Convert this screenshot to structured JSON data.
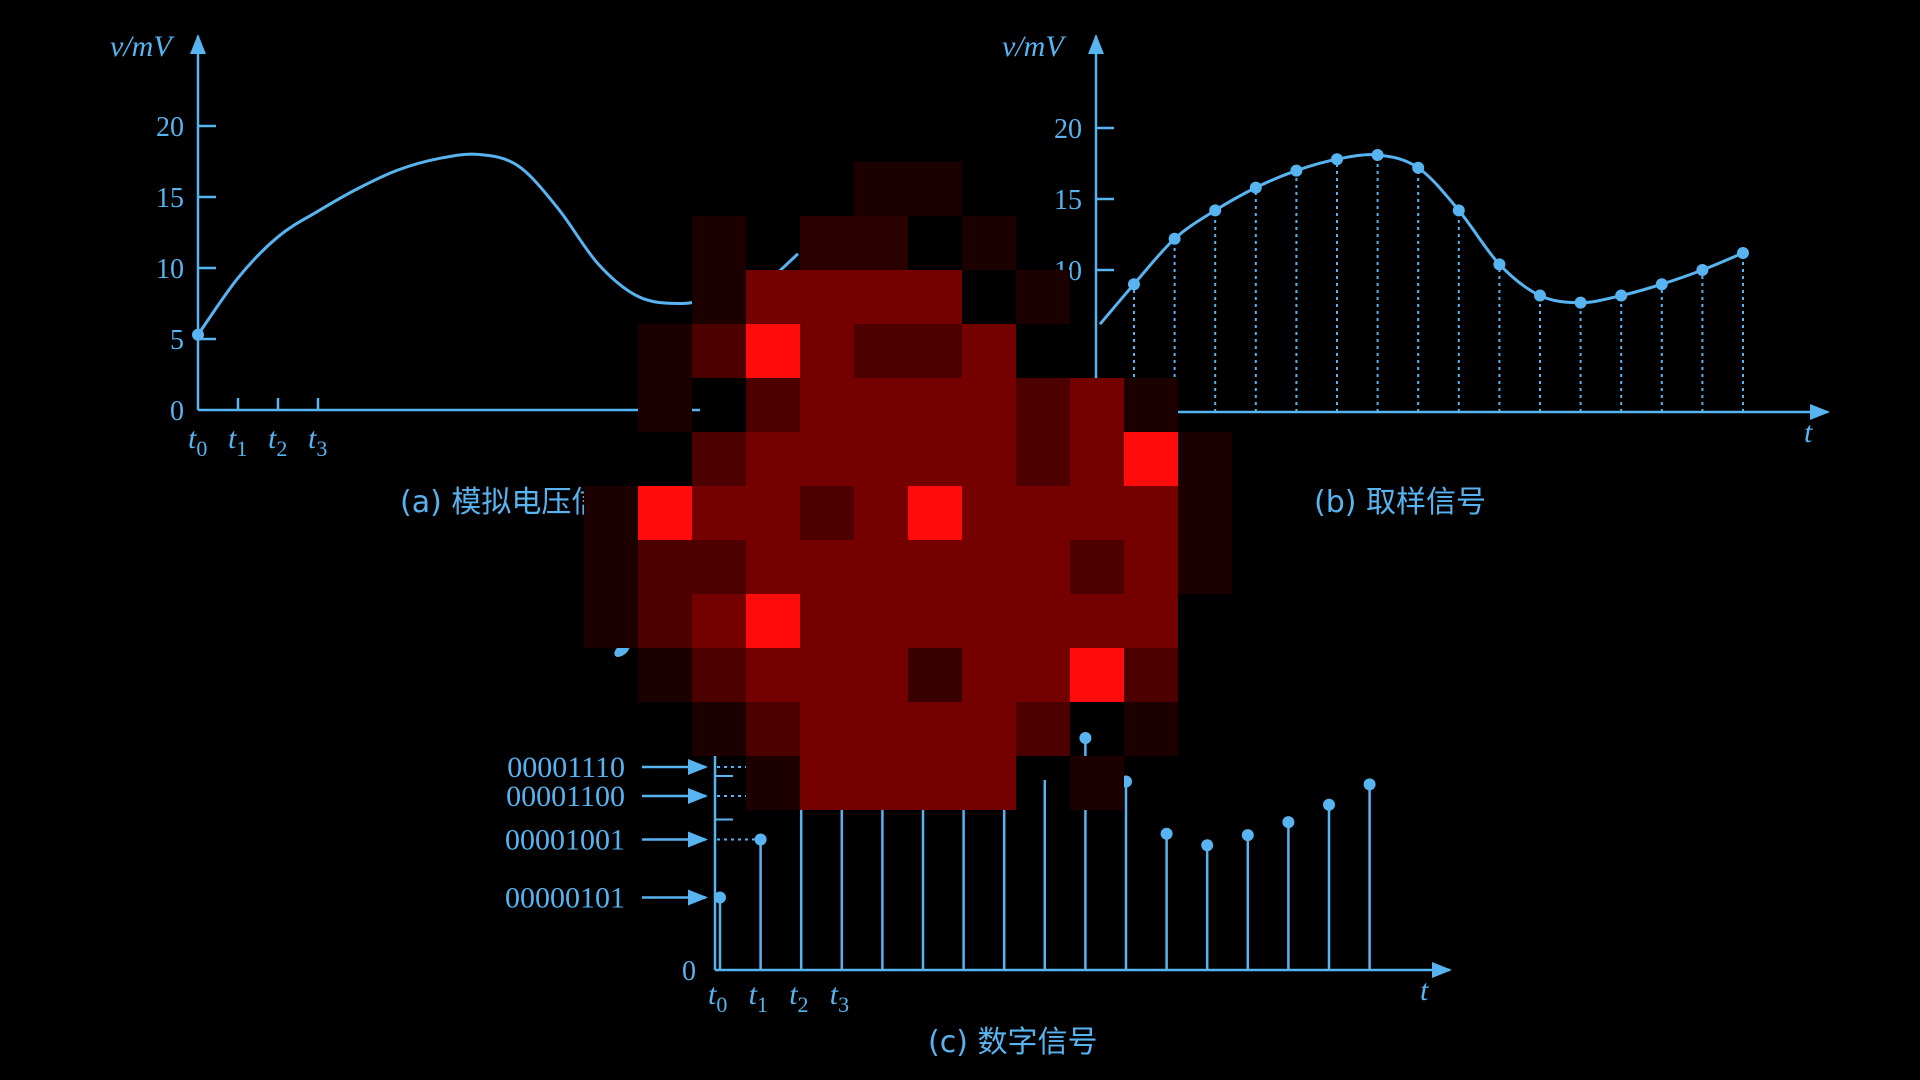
{
  "colors": {
    "background": "#000000",
    "line": "#58b4f0",
    "dotted": "#58b4f0",
    "mosaic_red": "#ff0a0a"
  },
  "panel_a": {
    "ylabel": "v/mV",
    "ytick_labels": [
      "20",
      "15",
      "10",
      "5",
      "0"
    ],
    "xtick_labels": [
      "t0",
      "t1",
      "t2",
      "t3"
    ],
    "caption": "(a) 模拟电压信号",
    "caption_visible": "(a) 模拟电压信"
  },
  "panel_b": {
    "ylabel": "v/mV",
    "ytick_labels": [
      "20",
      "15",
      "10"
    ],
    "xlabel": "t",
    "xtick_partial": "3",
    "caption": "(b) 取样信号"
  },
  "panel_c": {
    "code_labels": [
      "00001110",
      "00001100",
      "00001001",
      "00000101"
    ],
    "zero_label": "0",
    "xtick_labels": [
      "t0",
      "t1",
      "t2",
      "t3"
    ],
    "xlabel": "t",
    "caption": "(c) 数字信号"
  },
  "chart_data": [
    {
      "type": "line",
      "panel": "a",
      "ylabel": "v/mV",
      "ylim": [
        0,
        22
      ],
      "y_ticks": [
        0,
        5,
        10,
        15,
        20
      ],
      "x_ticks": [
        "t0",
        "t1",
        "t2",
        "t3"
      ],
      "x": [
        0,
        1,
        2,
        3,
        4,
        5,
        6,
        7,
        8,
        9,
        10,
        11,
        12,
        13,
        14,
        15
      ],
      "values": [
        5.3,
        9.3,
        12.2,
        14.0,
        15.6,
        16.9,
        17.7,
        18.0,
        17.2,
        14.2,
        10.3,
        8.0,
        7.5,
        7.9,
        8.6,
        11.0
      ]
    },
    {
      "type": "scatter",
      "panel": "b",
      "ylabel": "v/mV",
      "xlabel": "t",
      "ylim": [
        0,
        22
      ],
      "y_ticks": [
        10,
        15,
        20
      ],
      "x": [
        0,
        1,
        2,
        3,
        4,
        5,
        6,
        7,
        8,
        9,
        10,
        11,
        12,
        13,
        14,
        15
      ],
      "values": [
        9.0,
        12.2,
        14.2,
        15.8,
        17.0,
        17.8,
        18.1,
        17.2,
        14.2,
        10.4,
        8.2,
        7.7,
        8.2,
        9.0,
        10.0,
        11.2
      ]
    },
    {
      "type": "bar",
      "panel": "c",
      "xlabel": "t",
      "x_ticks": [
        "t0",
        "t1",
        "t2",
        "t3"
      ],
      "codes": [
        "00000101",
        "00001001",
        "00001100",
        "00001110"
      ],
      "x": [
        0,
        1,
        2,
        3,
        9,
        10,
        11,
        12,
        13,
        14,
        15,
        16
      ],
      "values": [
        5,
        9,
        12,
        14,
        16,
        13,
        9.4,
        8.6,
        9.3,
        10.2,
        11.4,
        12.8
      ]
    }
  ]
}
